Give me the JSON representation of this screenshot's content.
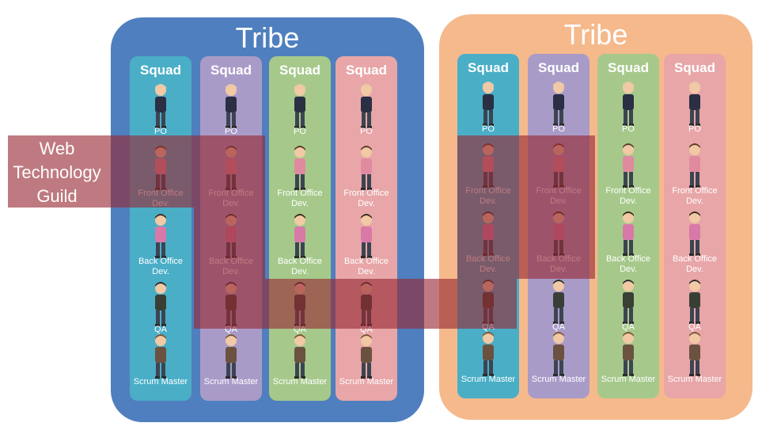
{
  "tribes": [
    {
      "title": "Tribe",
      "color": "#4f7fbe",
      "squads": [
        {
          "title": "Squad",
          "color": "#4aaec7",
          "roles": [
            "PO",
            "Front Office Dev.",
            "Back Office Dev.",
            "QA",
            "Scrum Master"
          ]
        },
        {
          "title": "Squad",
          "color": "#a99bc8",
          "roles": [
            "PO",
            "Front Office Dev.",
            "Back Office Dev.",
            "QA",
            "Scrum Master"
          ]
        },
        {
          "title": "Squad",
          "color": "#a6c98b",
          "roles": [
            "PO",
            "Front Office Dev.",
            "Back Office Dev.",
            "QA",
            "Scrum Master"
          ]
        },
        {
          "title": "Squad",
          "color": "#e8a6a8",
          "roles": [
            "PO",
            "Front Office Dev.",
            "Back Office Dev.",
            "QA",
            "Scrum Master"
          ]
        }
      ]
    },
    {
      "title": "Tribe",
      "color": "#f5b98c",
      "squads": [
        {
          "title": "Squad",
          "color": "#4aaec7",
          "roles": [
            "PO",
            "Front Office Dev.",
            "Back Office Dev.",
            "QA",
            "Scrum Master"
          ]
        },
        {
          "title": "Squad",
          "color": "#a99bc8",
          "roles": [
            "PO",
            "Front Office Dev.",
            "Back Office Dev.",
            "QA",
            "Scrum Master"
          ]
        },
        {
          "title": "Squad",
          "color": "#a6c98b",
          "roles": [
            "PO",
            "Front Office Dev.",
            "Back Office Dev.",
            "QA",
            "Scrum Master"
          ]
        },
        {
          "title": "Squad",
          "color": "#e8a6a8",
          "roles": [
            "PO",
            "Front Office Dev.",
            "Back Office Dev.",
            "QA",
            "Scrum Master"
          ]
        }
      ]
    }
  ],
  "guild": {
    "label": "Web Technology Guild",
    "color": "#962832"
  }
}
